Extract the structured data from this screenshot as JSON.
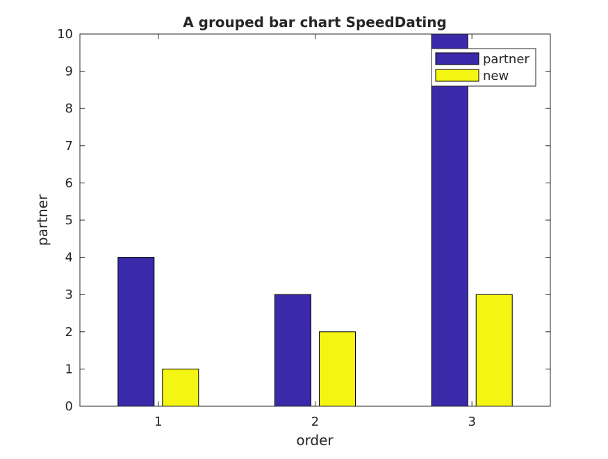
{
  "chart_data": {
    "type": "bar",
    "title": "A grouped bar chart SpeedDating",
    "xlabel": "order",
    "ylabel": "partner",
    "categories": [
      "1",
      "2",
      "3"
    ],
    "series": [
      {
        "name": "partner",
        "values": [
          4,
          3,
          10
        ],
        "color": "#3a29a8"
      },
      {
        "name": "new",
        "values": [
          1,
          2,
          3
        ],
        "color": "#f5f514"
      }
    ],
    "ylim": [
      0,
      10
    ],
    "yticks": [
      "0",
      "1",
      "2",
      "3",
      "4",
      "5",
      "6",
      "7",
      "8",
      "9",
      "10"
    ],
    "grid": false,
    "legend_position": "top-right"
  }
}
